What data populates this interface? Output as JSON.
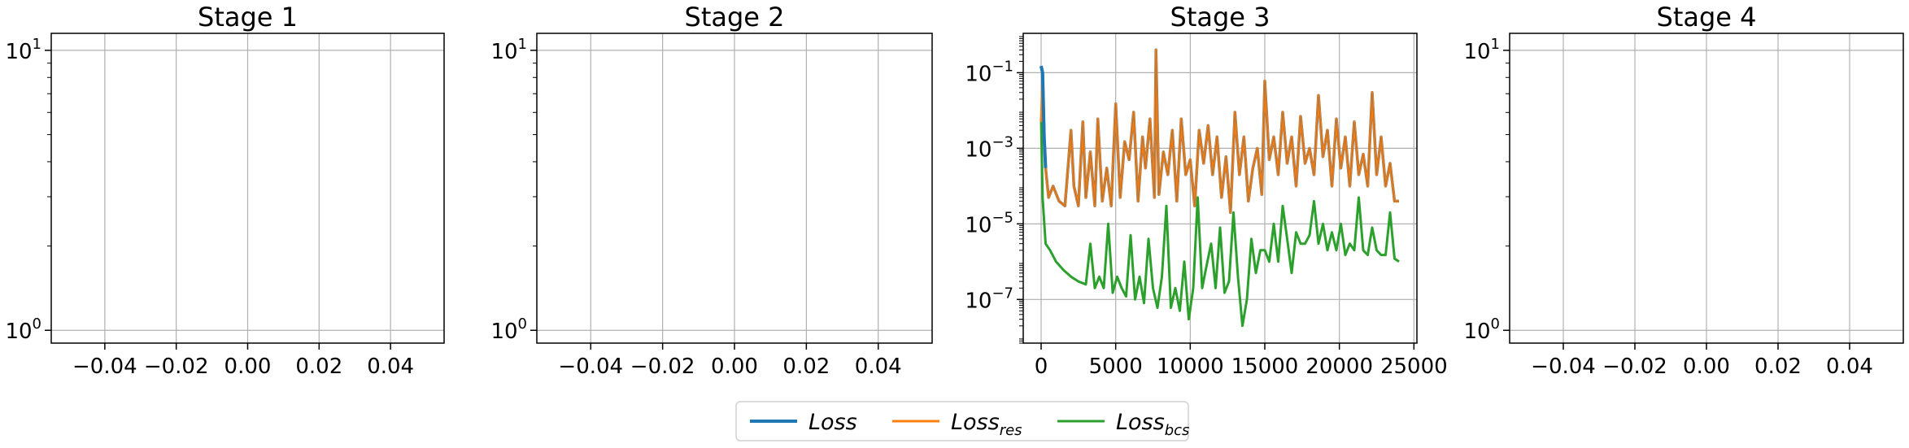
{
  "chart_data": [
    {
      "type": "line",
      "title": "Stage 1",
      "xlabel": "",
      "ylabel": "",
      "xlim": [
        -0.055,
        0.055
      ],
      "x_ticks": [
        -0.04,
        -0.02,
        0.0,
        0.02,
        0.04
      ],
      "x_tick_labels": [
        "−0.04",
        "−0.02",
        "0.00",
        "0.02",
        "0.04"
      ],
      "yscale": "log",
      "ylim": [
        0.9,
        11.5
      ],
      "y_ticks": [
        1,
        10
      ],
      "y_tick_labels": [
        {
          "base": "10",
          "exp": "0"
        },
        {
          "base": "10",
          "exp": "1"
        }
      ],
      "grid": true,
      "series": []
    },
    {
      "type": "line",
      "title": "Stage 2",
      "xlabel": "",
      "ylabel": "",
      "xlim": [
        -0.055,
        0.055
      ],
      "x_ticks": [
        -0.04,
        -0.02,
        0.0,
        0.02,
        0.04
      ],
      "x_tick_labels": [
        "−0.04",
        "−0.02",
        "0.00",
        "0.02",
        "0.04"
      ],
      "yscale": "log",
      "ylim": [
        0.9,
        11.5
      ],
      "y_ticks": [
        1,
        10
      ],
      "y_tick_labels": [
        {
          "base": "10",
          "exp": "0"
        },
        {
          "base": "10",
          "exp": "1"
        }
      ],
      "grid": true,
      "series": []
    },
    {
      "type": "line",
      "title": "Stage 3",
      "xlabel": "",
      "ylabel": "",
      "xlim": [
        -1200,
        25200
      ],
      "x_ticks": [
        0,
        5000,
        10000,
        15000,
        20000,
        25000
      ],
      "x_tick_labels": [
        "0",
        "5000",
        "10000",
        "15000",
        "20000",
        "25000"
      ],
      "yscale": "log",
      "ylim": [
        7e-09,
        1.1
      ],
      "y_ticks": [
        1e-07,
        1e-05,
        0.001,
        0.1
      ],
      "y_tick_labels": [
        {
          "base": "10",
          "exp": "−7"
        },
        {
          "base": "10",
          "exp": "−5"
        },
        {
          "base": "10",
          "exp": "−3"
        },
        {
          "base": "10",
          "exp": "−1"
        }
      ],
      "grid": true,
      "series": [
        {
          "name": "Loss",
          "color": "#1f77b4",
          "x": [
            0,
            100,
            200,
            300,
            500,
            800,
            1200,
            1600,
            2000,
            2200,
            2500,
            2800,
            3000,
            3300,
            3600,
            3800,
            4100,
            4400,
            4700,
            5000,
            5300,
            5600,
            5900,
            6200,
            6500,
            6800,
            7000,
            7300,
            7600,
            7700,
            7900,
            8200,
            8500,
            8800,
            9100,
            9400,
            9700,
            10000,
            10300,
            10600,
            10900,
            11200,
            11500,
            11800,
            12100,
            12400,
            12700,
            13000,
            13300,
            13600,
            13900,
            14200,
            14500,
            14800,
            15000,
            15300,
            15600,
            15900,
            16200,
            16500,
            16800,
            17100,
            17400,
            17700,
            18000,
            18300,
            18600,
            18900,
            19200,
            19500,
            19800,
            20100,
            20400,
            20700,
            21000,
            21300,
            21600,
            21900,
            22200,
            22500,
            22800,
            23100,
            23400,
            23700,
            24000
          ],
          "y": [
            0.15,
            0.1,
            0.002,
            0.0003,
            5e-05,
            0.0001,
            4e-05,
            3e-05,
            0.003,
            0.0001,
            3e-05,
            0.005,
            5e-05,
            0.0008,
            3e-05,
            0.006,
            4e-05,
            0.0003,
            3e-05,
            0.015,
            5e-05,
            0.0015,
            0.0005,
            0.009,
            4e-05,
            0.002,
            0.0003,
            0.006,
            5e-05,
            0.4,
            6e-05,
            0.0008,
            0.0002,
            0.003,
            4e-05,
            0.006,
            0.0002,
            0.0005,
            3e-05,
            0.003,
            0.0004,
            0.004,
            0.0002,
            0.002,
            5e-05,
            0.0006,
            2e-05,
            0.009,
            0.0002,
            0.002,
            4e-05,
            0.0003,
            0.001,
            6e-05,
            0.06,
            0.0005,
            0.002,
            0.0002,
            0.009,
            0.0004,
            0.002,
            0.0001,
            0.007,
            0.0004,
            0.001,
            0.0002,
            0.025,
            0.0006,
            0.003,
            0.0001,
            0.006,
            0.0003,
            0.002,
            0.0001,
            0.005,
            0.0002,
            0.0007,
            0.0001,
            0.03,
            0.0002,
            0.002,
            0.0001,
            0.0004,
            4e-05,
            4e-05
          ]
        },
        {
          "name": "Loss_res",
          "color": "#ff7f0e",
          "x": [
            0,
            100,
            200,
            300,
            500,
            800,
            1200,
            1600,
            2000,
            2200,
            2500,
            2800,
            3000,
            3300,
            3600,
            3800,
            4100,
            4400,
            4700,
            5000,
            5300,
            5600,
            5900,
            6200,
            6500,
            6800,
            7000,
            7300,
            7600,
            7700,
            7900,
            8200,
            8500,
            8800,
            9100,
            9400,
            9700,
            10000,
            10300,
            10600,
            10900,
            11200,
            11500,
            11800,
            12100,
            12400,
            12700,
            13000,
            13300,
            13600,
            13900,
            14200,
            14500,
            14800,
            15000,
            15300,
            15600,
            15900,
            16200,
            16500,
            16800,
            17100,
            17400,
            17700,
            18000,
            18300,
            18600,
            18900,
            19200,
            19500,
            19800,
            20100,
            20400,
            20700,
            21000,
            21300,
            21600,
            21900,
            22200,
            22500,
            22800,
            23100,
            23400,
            23700,
            24000
          ],
          "y": [
            0.005,
            0.08,
            0.002,
            0.0003,
            5e-05,
            0.0001,
            4e-05,
            3e-05,
            0.003,
            0.0001,
            3e-05,
            0.005,
            5e-05,
            0.0008,
            3e-05,
            0.006,
            4e-05,
            0.0003,
            3e-05,
            0.015,
            5e-05,
            0.0015,
            0.0005,
            0.009,
            4e-05,
            0.002,
            0.0003,
            0.006,
            5e-05,
            0.4,
            6e-05,
            0.0008,
            0.0002,
            0.003,
            4e-05,
            0.006,
            0.0002,
            0.0005,
            3e-05,
            0.003,
            0.0004,
            0.004,
            0.0002,
            0.002,
            5e-05,
            0.0006,
            2e-05,
            0.009,
            0.0002,
            0.002,
            4e-05,
            0.0003,
            0.001,
            6e-05,
            0.06,
            0.0005,
            0.002,
            0.0002,
            0.009,
            0.0004,
            0.002,
            0.0001,
            0.007,
            0.0004,
            0.001,
            0.0002,
            0.025,
            0.0006,
            0.003,
            0.0001,
            0.006,
            0.0003,
            0.002,
            0.0001,
            0.005,
            0.0002,
            0.0007,
            0.0001,
            0.03,
            0.0002,
            0.002,
            0.0001,
            0.0004,
            4e-05,
            4e-05
          ]
        },
        {
          "name": "Loss_bcs",
          "color": "#2ca02c",
          "x": [
            0,
            100,
            300,
            600,
            1000,
            1500,
            2000,
            2500,
            3000,
            3300,
            3600,
            3900,
            4200,
            4500,
            4800,
            5100,
            5400,
            5700,
            6000,
            6300,
            6600,
            6900,
            7200,
            7500,
            7800,
            8100,
            8400,
            8700,
            9000,
            9300,
            9600,
            9900,
            10200,
            10500,
            10800,
            11100,
            11400,
            11700,
            12000,
            12300,
            12600,
            12900,
            13200,
            13500,
            13800,
            14100,
            14400,
            14700,
            15000,
            15300,
            15600,
            15900,
            16200,
            16500,
            16800,
            17100,
            17400,
            17700,
            18000,
            18300,
            18600,
            18900,
            19200,
            19500,
            19800,
            20100,
            20400,
            20700,
            21000,
            21300,
            21600,
            21900,
            22200,
            22500,
            22800,
            23100,
            23400,
            23700,
            24000
          ],
          "y": [
            0.006,
            5e-05,
            3e-06,
            2e-06,
            1e-06,
            6e-07,
            4e-07,
            3e-07,
            2.5e-07,
            3e-06,
            2e-07,
            4e-07,
            2e-07,
            1e-05,
            1.5e-07,
            4e-07,
            2e-07,
            1.2e-07,
            5e-06,
            1e-07,
            4e-07,
            8e-08,
            4e-06,
            2e-07,
            6e-08,
            4e-07,
            3e-05,
            6e-08,
            2e-07,
            5e-08,
            1e-06,
            3e-08,
            2e-07,
            5e-05,
            2e-07,
            8e-07,
            3e-06,
            2e-07,
            8e-06,
            1.5e-07,
            3e-07,
            2e-05,
            4e-07,
            2e-08,
            1e-07,
            4e-06,
            5e-07,
            2e-06,
            2e-06,
            1e-06,
            1e-05,
            1e-06,
            3e-05,
            4e-06,
            5e-07,
            6e-06,
            3e-06,
            3e-06,
            5e-06,
            4e-05,
            3e-06,
            1e-05,
            2e-06,
            6e-06,
            2e-06,
            1e-05,
            1.5e-06,
            3e-06,
            2e-06,
            5e-05,
            2e-06,
            1.5e-06,
            8e-06,
            2e-06,
            1.5e-06,
            1.5e-06,
            2e-05,
            1.2e-06,
            1e-06
          ]
        }
      ]
    },
    {
      "type": "line",
      "title": "Stage 4",
      "xlabel": "",
      "ylabel": "",
      "xlim": [
        -0.055,
        0.055
      ],
      "x_ticks": [
        -0.04,
        -0.02,
        0.0,
        0.02,
        0.04
      ],
      "x_tick_labels": [
        "−0.04",
        "−0.02",
        "0.00",
        "0.02",
        "0.04"
      ],
      "yscale": "log",
      "ylim": [
        0.9,
        11.5
      ],
      "y_ticks": [
        1,
        10
      ],
      "y_tick_labels": [
        {
          "base": "10",
          "exp": "0"
        },
        {
          "base": "10",
          "exp": "1"
        }
      ],
      "grid": true,
      "series": []
    }
  ],
  "legend": {
    "placement": "bottom-center",
    "items": [
      {
        "base": "Loss",
        "sub": "",
        "color": "#1f77b4"
      },
      {
        "base": "Loss",
        "sub": "res",
        "color": "#ff7f0e"
      },
      {
        "base": "Loss",
        "sub": "bcs",
        "color": "#2ca02c"
      }
    ]
  }
}
